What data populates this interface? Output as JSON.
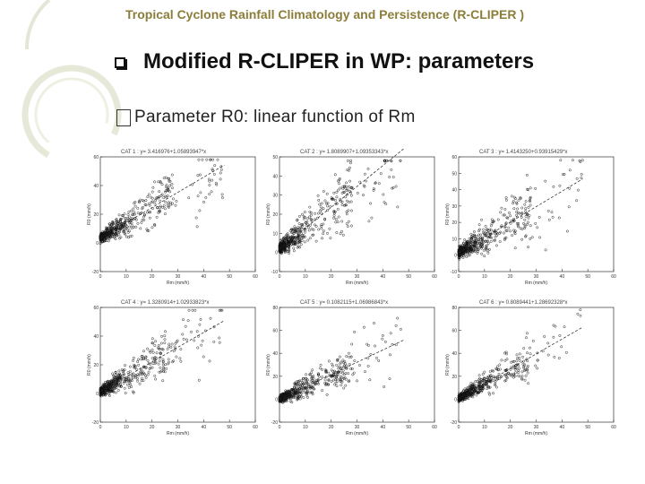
{
  "header": {
    "title": "Tropical Cyclone Rainfall Climatology and Persistence (R-CLIPER )"
  },
  "slide": {
    "bullet": "Modified R-CLIPER in WP: parameters",
    "sub_bullet": "Parameter R0: linear function of Rm"
  },
  "chart_data": [
    {
      "type": "scatter",
      "title": "CAT 1 : y= 3.416976+1.05893947*x",
      "xlabel": "Rm (mm/h)",
      "ylabel": "R0 (mm/h)",
      "xlim": [
        0,
        60
      ],
      "ylim": [
        -20,
        60
      ],
      "xticks": [
        "0",
        "10",
        "20",
        "30",
        "40",
        "50",
        "60"
      ],
      "yticks": [
        "-20",
        "0",
        "20",
        "40",
        "60"
      ],
      "intercept": 3.42,
      "slope": 1.06
    },
    {
      "type": "scatter",
      "title": "CAT 2 : y= 1.8089907+1.09353343*x",
      "xlabel": "Rm (mm/h)",
      "ylabel": "R0 (mm/h)",
      "xlim": [
        0,
        60
      ],
      "ylim": [
        -10,
        50
      ],
      "xticks": [
        "0",
        "10",
        "20",
        "30",
        "40",
        "50",
        "60"
      ],
      "yticks": [
        "-10",
        "0",
        "10",
        "20",
        "30",
        "40",
        "50"
      ],
      "intercept": 1.81,
      "slope": 1.09
    },
    {
      "type": "scatter",
      "title": "CAT 3 : y= 1.4143250+0.93915429*x",
      "xlabel": "Rm (mm/h)",
      "ylabel": "R0 (mm/h)",
      "xlim": [
        0,
        60
      ],
      "ylim": [
        -10,
        60
      ],
      "xticks": [
        "0",
        "10",
        "20",
        "30",
        "40",
        "50",
        "60"
      ],
      "yticks": [
        "-10",
        "0",
        "10",
        "20",
        "30",
        "40",
        "50",
        "60"
      ],
      "intercept": 1.41,
      "slope": 0.94
    },
    {
      "type": "scatter",
      "title": "CAT 4 : y= 1.3280914+1.02933823*x",
      "xlabel": "Rm (mm/h)",
      "ylabel": "R0 (mm/h)",
      "xlim": [
        0,
        60
      ],
      "ylim": [
        -20,
        60
      ],
      "xticks": [
        "0",
        "10",
        "20",
        "30",
        "40",
        "50",
        "60"
      ],
      "yticks": [
        "-20",
        "0",
        "20",
        "40",
        "60"
      ],
      "intercept": 1.33,
      "slope": 1.03
    },
    {
      "type": "scatter",
      "title": "CAT 5 : y= 0.1082115+1.06986843*x",
      "xlabel": "Rm (mm/h)",
      "ylabel": "R0 (mm/h)",
      "xlim": [
        0,
        60
      ],
      "ylim": [
        -20,
        80
      ],
      "xticks": [
        "0",
        "10",
        "20",
        "30",
        "40",
        "50",
        "60"
      ],
      "yticks": [
        "-20",
        "0",
        "20",
        "40",
        "60",
        "80"
      ],
      "intercept": 0.11,
      "slope": 1.07
    },
    {
      "type": "scatter",
      "title": "CAT 6 : y= 0.8089441+1.28692328*x",
      "xlabel": "Rm (mm/h)",
      "ylabel": "R0 (mm/h)",
      "xlim": [
        0,
        60
      ],
      "ylim": [
        -20,
        80
      ],
      "xticks": [
        "0",
        "10",
        "20",
        "30",
        "40",
        "50",
        "60"
      ],
      "yticks": [
        "-20",
        "0",
        "20",
        "40",
        "60",
        "80"
      ],
      "intercept": 0.81,
      "slope": 1.29
    }
  ]
}
